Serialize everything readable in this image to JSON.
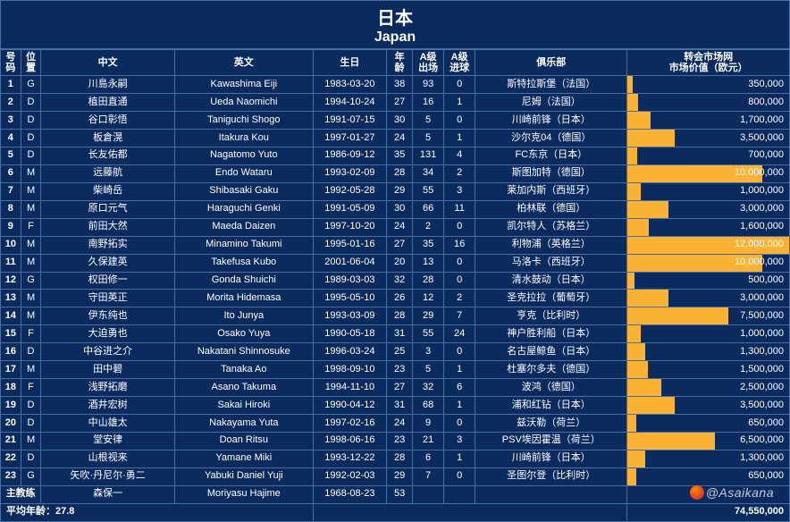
{
  "title_cn": "日本",
  "title_en": "Japan",
  "headers": {
    "num": "号码",
    "pos": "位置",
    "cn": "中文",
    "en": "英文",
    "bday": "生日",
    "age": "年龄",
    "caps": "A级出场",
    "goals": "A级进球",
    "club": "俱乐部",
    "val": "转会市场网\n市场价值（欧元）"
  },
  "coach_label": "主教练",
  "avg_age_label": "平均年龄：",
  "avg_age_value": "27.8",
  "total_value_label": "74,550,000",
  "watermark": "@Asaikana",
  "bar_color": "#f9b233",
  "max_value": 12000000,
  "players": [
    {
      "num": "1",
      "pos": "G",
      "cn": "川島永嗣",
      "en": "Kawashima Eiji",
      "bday": "1983-03-20",
      "age": "38",
      "caps": "93",
      "goals": "0",
      "club": "斯特拉斯堡（法国）",
      "val": 350000,
      "val_text": "350,000"
    },
    {
      "num": "2",
      "pos": "D",
      "cn": "植田直通",
      "en": "Ueda Naomichi",
      "bday": "1994-10-24",
      "age": "27",
      "caps": "16",
      "goals": "1",
      "club": "尼姆（法国）",
      "val": 800000,
      "val_text": "800,000"
    },
    {
      "num": "3",
      "pos": "D",
      "cn": "谷口彰悟",
      "en": "Taniguchi Shogo",
      "bday": "1991-07-15",
      "age": "30",
      "caps": "5",
      "goals": "0",
      "club": "川崎前锋（日本）",
      "val": 1700000,
      "val_text": "1,700,000"
    },
    {
      "num": "4",
      "pos": "D",
      "cn": "板倉滉",
      "en": "Itakura Kou",
      "bday": "1997-01-27",
      "age": "24",
      "caps": "5",
      "goals": "1",
      "club": "沙尔克04（德国）",
      "val": 3500000,
      "val_text": "3,500,000"
    },
    {
      "num": "5",
      "pos": "D",
      "cn": "长友佑都",
      "en": "Nagatomo Yuto",
      "bday": "1986-09-12",
      "age": "35",
      "caps": "131",
      "goals": "4",
      "club": "FC东京（日本）",
      "val": 700000,
      "val_text": "700,000"
    },
    {
      "num": "6",
      "pos": "M",
      "cn": "远藤航",
      "en": "Endo Wataru",
      "bday": "1993-02-09",
      "age": "28",
      "caps": "34",
      "goals": "2",
      "club": "斯图加特（德国）",
      "val": 10000000,
      "val_text": "10,000,000"
    },
    {
      "num": "7",
      "pos": "M",
      "cn": "柴崎岳",
      "en": "Shibasaki Gaku",
      "bday": "1992-05-28",
      "age": "29",
      "caps": "55",
      "goals": "3",
      "club": "莱加内斯（西班牙）",
      "val": 1000000,
      "val_text": "1,000,000"
    },
    {
      "num": "8",
      "pos": "M",
      "cn": "原口元气",
      "en": "Haraguchi Genki",
      "bday": "1991-05-09",
      "age": "30",
      "caps": "66",
      "goals": "11",
      "club": "柏林联（德国）",
      "val": 3000000,
      "val_text": "3,000,000"
    },
    {
      "num": "9",
      "pos": "F",
      "cn": "前田大然",
      "en": "Maeda Daizen",
      "bday": "1997-10-20",
      "age": "24",
      "caps": "2",
      "goals": "0",
      "club": "凯尔特人（苏格兰）",
      "val": 1600000,
      "val_text": "1,600,000"
    },
    {
      "num": "10",
      "pos": "M",
      "cn": "南野拓实",
      "en": "Minamino Takumi",
      "bday": "1995-01-16",
      "age": "27",
      "caps": "35",
      "goals": "16",
      "club": "利物浦（英格兰）",
      "val": 12000000,
      "val_text": "12,000,000"
    },
    {
      "num": "11",
      "pos": "M",
      "cn": "久保建英",
      "en": "Takefusa Kubo",
      "bday": "2001-06-04",
      "age": "20",
      "caps": "13",
      "goals": "0",
      "club": "马洛卡（西班牙）",
      "val": 10000000,
      "val_text": "10,000,000"
    },
    {
      "num": "12",
      "pos": "G",
      "cn": "权田修一",
      "en": "Gonda Shuichi",
      "bday": "1989-03-03",
      "age": "32",
      "caps": "28",
      "goals": "0",
      "club": "清水鼓动（日本）",
      "val": 500000,
      "val_text": "500,000"
    },
    {
      "num": "13",
      "pos": "M",
      "cn": "守田英正",
      "en": "Morita Hidemasa",
      "bday": "1995-05-10",
      "age": "26",
      "caps": "12",
      "goals": "2",
      "club": "圣克拉拉（葡萄牙）",
      "val": 3000000,
      "val_text": "3,000,000"
    },
    {
      "num": "14",
      "pos": "M",
      "cn": "伊东纯也",
      "en": "Ito Junya",
      "bday": "1993-03-09",
      "age": "28",
      "caps": "29",
      "goals": "7",
      "club": "亨克（比利时）",
      "val": 7500000,
      "val_text": "7,500,000"
    },
    {
      "num": "15",
      "pos": "F",
      "cn": "大迫勇也",
      "en": "Osako Yuya",
      "bday": "1990-05-18",
      "age": "31",
      "caps": "55",
      "goals": "24",
      "club": "神户胜利船（日本）",
      "val": 1000000,
      "val_text": "1,000,000"
    },
    {
      "num": "16",
      "pos": "D",
      "cn": "中谷进之介",
      "en": "Nakatani Shinnosuke",
      "bday": "1996-03-24",
      "age": "25",
      "caps": "3",
      "goals": "0",
      "club": "名古屋鲸鱼（日本）",
      "val": 1300000,
      "val_text": "1,300,000"
    },
    {
      "num": "17",
      "pos": "M",
      "cn": "田中碧",
      "en": "Tanaka Ao",
      "bday": "1998-09-10",
      "age": "23",
      "caps": "5",
      "goals": "1",
      "club": "杜塞尔多夫（德国）",
      "val": 1500000,
      "val_text": "1,500,000"
    },
    {
      "num": "18",
      "pos": "F",
      "cn": "浅野拓磨",
      "en": "Asano Takuma",
      "bday": "1994-11-10",
      "age": "27",
      "caps": "32",
      "goals": "6",
      "club": "波鸿（德国）",
      "val": 2500000,
      "val_text": "2,500,000"
    },
    {
      "num": "19",
      "pos": "D",
      "cn": "酒井宏树",
      "en": "Sakai Hiroki",
      "bday": "1990-04-12",
      "age": "31",
      "caps": "68",
      "goals": "1",
      "club": "浦和红钻（日本）",
      "val": 3500000,
      "val_text": "3,500,000"
    },
    {
      "num": "20",
      "pos": "D",
      "cn": "中山雄太",
      "en": "Nakayama Yuta",
      "bday": "1997-02-16",
      "age": "24",
      "caps": "9",
      "goals": "0",
      "club": "兹沃勒（荷兰）",
      "val": 650000,
      "val_text": "650,000"
    },
    {
      "num": "21",
      "pos": "M",
      "cn": "堂安律",
      "en": "Doan Ritsu",
      "bday": "1998-06-16",
      "age": "23",
      "caps": "21",
      "goals": "3",
      "club": "PSV埃因霍温（荷兰）",
      "val": 6500000,
      "val_text": "6,500,000"
    },
    {
      "num": "22",
      "pos": "D",
      "cn": "山根视来",
      "en": "Yamane Miki",
      "bday": "1993-12-22",
      "age": "28",
      "caps": "6",
      "goals": "1",
      "club": "川崎前锋（日本）",
      "val": 1300000,
      "val_text": "1,300,000"
    },
    {
      "num": "23",
      "pos": "G",
      "cn": "矢吹·丹尼尔·勇二",
      "en": "Yabuki Daniel Yuji",
      "bday": "1992-02-03",
      "age": "29",
      "caps": "7",
      "goals": "0",
      "club": "圣图尔登（比利时）",
      "val": 650000,
      "val_text": "650,000"
    }
  ],
  "coach": {
    "cn": "森保一",
    "en": "Moriyasu Hajime",
    "bday": "1968-08-23",
    "age": "53"
  }
}
